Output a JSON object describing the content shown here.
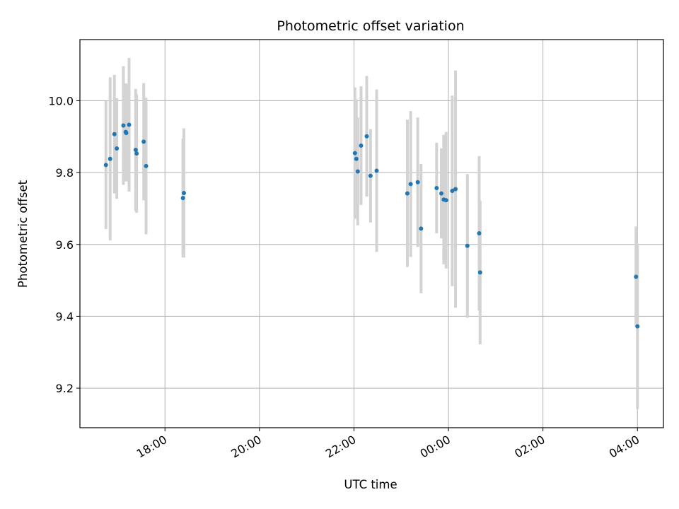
{
  "chart_data": {
    "type": "scatter",
    "title": "Photometric offset variation",
    "xlabel": "UTC time",
    "ylabel": "Photometric offset",
    "x_tick_labels": [
      "18:00",
      "20:00",
      "22:00",
      "00:00",
      "02:00",
      "04:00"
    ],
    "x_tick_hours": [
      18,
      20,
      22,
      24,
      26,
      28
    ],
    "xlim_hours": [
      16.2,
      28.55
    ],
    "y_ticks": [
      9.2,
      9.4,
      9.6,
      9.8,
      10.0
    ],
    "y_tick_labels": [
      "9.2",
      "9.4",
      "9.6",
      "9.8",
      "10.0"
    ],
    "ylim": [
      9.09,
      10.17
    ],
    "grid": true,
    "marker_color": "#1f77b4",
    "errorbar_color": "#d3d3d3",
    "points": [
      {
        "x": 16.75,
        "y": 9.821,
        "err": 0.178
      },
      {
        "x": 16.84,
        "y": 9.838,
        "err": 0.227
      },
      {
        "x": 16.93,
        "y": 9.907,
        "err": 0.165
      },
      {
        "x": 16.98,
        "y": 9.867,
        "err": 0.14
      },
      {
        "x": 17.12,
        "y": 9.931,
        "err": 0.165
      },
      {
        "x": 17.17,
        "y": 9.913,
        "err": 0.135
      },
      {
        "x": 17.18,
        "y": 9.91,
        "err": 0.135
      },
      {
        "x": 17.24,
        "y": 9.933,
        "err": 0.186
      },
      {
        "x": 17.38,
        "y": 9.863,
        "err": 0.17
      },
      {
        "x": 17.4,
        "y": 9.853,
        "err": 0.165
      },
      {
        "x": 17.55,
        "y": 9.886,
        "err": 0.163
      },
      {
        "x": 17.6,
        "y": 9.818,
        "err": 0.19
      },
      {
        "x": 18.38,
        "y": 9.729,
        "err": 0.165
      },
      {
        "x": 18.4,
        "y": 9.743,
        "err": 0.18
      },
      {
        "x": 22.02,
        "y": 9.854,
        "err": 0.183
      },
      {
        "x": 22.05,
        "y": 9.838,
        "err": 0.165
      },
      {
        "x": 22.08,
        "y": 9.803,
        "err": 0.15
      },
      {
        "x": 22.15,
        "y": 9.875,
        "err": 0.165
      },
      {
        "x": 22.27,
        "y": 9.901,
        "err": 0.168
      },
      {
        "x": 22.35,
        "y": 9.791,
        "err": 0.13
      },
      {
        "x": 22.48,
        "y": 9.805,
        "err": 0.226
      },
      {
        "x": 23.13,
        "y": 9.742,
        "err": 0.205
      },
      {
        "x": 23.2,
        "y": 9.768,
        "err": 0.203
      },
      {
        "x": 23.35,
        "y": 9.773,
        "err": 0.18
      },
      {
        "x": 23.42,
        "y": 9.644,
        "err": 0.18
      },
      {
        "x": 23.75,
        "y": 9.757,
        "err": 0.126
      },
      {
        "x": 23.85,
        "y": 9.742,
        "err": 0.125
      },
      {
        "x": 23.9,
        "y": 9.725,
        "err": 0.18
      },
      {
        "x": 23.95,
        "y": 9.723,
        "err": 0.19
      },
      {
        "x": 24.08,
        "y": 9.749,
        "err": 0.265
      },
      {
        "x": 24.15,
        "y": 9.754,
        "err": 0.33
      },
      {
        "x": 24.4,
        "y": 9.596,
        "err": 0.2
      },
      {
        "x": 24.65,
        "y": 9.631,
        "err": 0.215
      },
      {
        "x": 24.67,
        "y": 9.522,
        "err": 0.2
      },
      {
        "x": 27.97,
        "y": 9.51,
        "err": 0.14
      },
      {
        "x": 28.0,
        "y": 9.372,
        "err": 0.23
      }
    ]
  }
}
